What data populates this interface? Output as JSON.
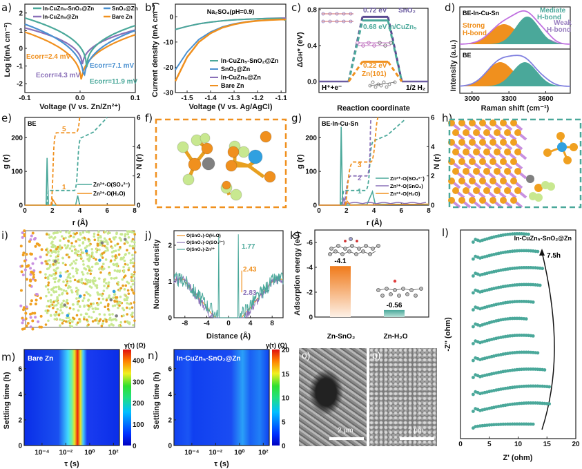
{
  "colors": {
    "teal": "#4aa89a",
    "blue": "#4a90d0",
    "purple": "#8a70b8",
    "orange": "#f0901e",
    "lime": "#c8e890",
    "zn": "#808080",
    "s": "#30a0e0",
    "sn": "#c890e0"
  },
  "panels": {
    "a": {
      "label": "a)",
      "xlabel": "Voltage (V vs. Zn/Zn²⁺)",
      "ylabel": "Log i(mA cm⁻²)",
      "xticks": [
        "-0.1",
        "0.0",
        "0.1"
      ],
      "yticks": [
        "2",
        "1",
        "0",
        "-1",
        "-2"
      ],
      "legend": [
        "In-CuZn₅-SnO₂@Zn",
        "SnO₂@Zn",
        "In-CuZn₅@Zn",
        "Bare Zn"
      ],
      "annotations": [
        "Eₕₒᵣᵣ=2.4 mV",
        "Eₕₒᵣᵣ=4.3 mV",
        "Eₕₒᵣᵣ=7.1 mV",
        "Eₕₒᵣᵣ=11.9 mV"
      ],
      "ecorr": [
        "Ecorr=2.4 mV",
        "Ecorr=4.3 mV",
        "Ecorr=7.1 mV",
        "Ecorr=11.9 mV"
      ]
    },
    "b": {
      "label": "b)",
      "title": "Na₂SO₄(pH=0.9)",
      "xlabel": "Voltage (V vs. Ag/AgCl)",
      "ylabel": "Current density (mA cm⁻²)",
      "xticks": [
        "-1.5",
        "-1.4",
        "-1.3",
        "-1.2",
        "-1.1"
      ],
      "yticks": [
        "0",
        "-10",
        "-20",
        "-30"
      ],
      "legend": [
        "In-CuZn₅-SnO₂@Zn",
        "SnO₂@Zn",
        "In-CuZn₅@Zn",
        "Bare Zn"
      ]
    },
    "c": {
      "label": "c)",
      "xlabel": "Reaction coordinate",
      "ylabel": "ΔGʜ* (eV)",
      "yticks": [
        "0.8",
        "0.4",
        "0.0"
      ],
      "start": "H⁺+e⁻",
      "end": "1/2 H₂",
      "levels": [
        {
          "value": "0.72 eV",
          "name": "SnO₂"
        },
        {
          "value": "0.68 eV",
          "name": "In/CuZn₅"
        },
        {
          "value": "0.22 eV",
          "name": "Zn(101)"
        }
      ]
    },
    "d": {
      "label": "d)",
      "xlabel": "Raman shift (cm⁻¹)",
      "ylabel": "Intensity (a.u.)",
      "xticks": [
        "3000",
        "3300",
        "3600"
      ],
      "top": "BE-In-Cu-Sn",
      "bottom": "BE",
      "strong": "Strong H-bond",
      "mediate": "Mediate H-bond",
      "weak": "Weak H-bond"
    },
    "e": {
      "label": "e)",
      "tag": "BE",
      "xlabel": "r (Å)",
      "ylabel": "g (r)",
      "y2label": "N (r)",
      "xticks": [
        "0",
        "2",
        "4",
        "6",
        "8"
      ],
      "yticks": [
        "200",
        "100",
        "0"
      ],
      "y2ticks": [
        "6",
        "4",
        "2",
        "0"
      ],
      "n1": "1",
      "n2": "5",
      "legend": [
        "Zn²⁺-O(SO₄²⁻)",
        "Zn²⁺-O(H₂O)"
      ]
    },
    "f": {
      "label": "f)"
    },
    "g": {
      "label": "g)",
      "tag": "BE-In-Cu-Sn",
      "xlabel": "r (Å)",
      "ylabel": "g (r)",
      "y2label": "N (r)",
      "xticks": [
        "0",
        "2",
        "4",
        "6",
        "8"
      ],
      "yticks": [
        "200",
        "100",
        "0"
      ],
      "y2ticks": [
        "6",
        "4",
        "2",
        "0"
      ],
      "n1": "1",
      "n2": "2",
      "n3": "3",
      "legend": [
        "Zn²⁺-O(SO₄²⁻)",
        "Zn²⁺-O(SnO₂)",
        "Zn²⁺-O(H₂O)"
      ]
    },
    "h": {
      "label": "h)"
    },
    "i": {
      "label": "i)"
    },
    "j": {
      "label": "j)",
      "xlabel": "Distance (Å)",
      "ylabel": "Normalized density",
      "xticks": [
        "-8",
        "-4",
        "0",
        "4",
        "8"
      ],
      "yticks": [
        "2",
        "1",
        "0"
      ],
      "legend": [
        "O(SnO₂)-O(H₂O)",
        "O(SnO₂)-O(SO₄²⁻)",
        "O(SnO₂)-Zn²⁺"
      ],
      "peaks": [
        "1.77",
        "2.43",
        "2.83"
      ]
    },
    "k": {
      "label": "k)",
      "ylabel": "Adsorption energy (eV)",
      "yticks": [
        "-6",
        "-4",
        "-2",
        "0"
      ],
      "categories": [
        "Zn-SnO₂",
        "Zn-H₂O"
      ],
      "values": [
        "-4.1",
        "-0.56"
      ]
    },
    "l": {
      "label": "l)",
      "tag": "In-CuZn₅-SnO₂@Zn",
      "xlabel": "Z' (ohm)",
      "ylabel": "-Z'' (ohm)",
      "xticks": [
        "0",
        "5",
        "10",
        "15",
        "20"
      ],
      "arrow": "7.5h"
    },
    "m": {
      "label": "m)",
      "tag": "Bare Zn",
      "xlabel": "τ (s)",
      "ylabel": "Settling time (h)",
      "xticks": [
        "10⁻⁴",
        "10⁻²",
        "10⁰",
        "10²"
      ],
      "yticks": [
        "6",
        "4",
        "2",
        "0"
      ],
      "cbar_title": "γ(τ) (Ω)",
      "cbar_ticks": [
        "400",
        "300",
        "200",
        "100",
        "0"
      ]
    },
    "n": {
      "label": "n)",
      "tag": "In-CuZn₅-SnO₂@Zn",
      "xlabel": "τ (s)",
      "ylabel": "Settling time (h)",
      "xticks": [
        "10⁻⁴",
        "10⁻²",
        "10⁰",
        "10²"
      ],
      "yticks": [
        "6",
        "4",
        "2",
        "0"
      ],
      "cbar_title": "γ(τ) (Ω)",
      "cbar_ticks": [
        "20",
        "15",
        "10",
        "5",
        "0"
      ]
    },
    "o": {
      "label": "o)",
      "scale": "2 μm"
    },
    "p": {
      "label": "p)",
      "scale": "2 μm"
    }
  },
  "chart_data": [
    {
      "panel": "a",
      "type": "line",
      "title": "",
      "xlabel": "Voltage (V vs. Zn/Zn2+)",
      "ylabel": "Log i (mA cm-2)",
      "xlim": [
        -0.1,
        0.1
      ],
      "ylim": [
        -2.5,
        2.5
      ],
      "series": [
        {
          "name": "In-CuZn5-SnO2@Zn",
          "ecorr_V": 0.0119,
          "min": -1.3,
          "left": 1.7,
          "right": 1.5
        },
        {
          "name": "SnO2@Zn",
          "ecorr_V": 0.0071,
          "min": -2.1,
          "left": 1.4,
          "right": 1.2
        },
        {
          "name": "In-CuZn5@Zn",
          "ecorr_V": 0.0043,
          "min": -1.2,
          "left": 1.2,
          "right": 1.15
        },
        {
          "name": "Bare Zn",
          "ecorr_V": 0.0024,
          "min": -2.2,
          "left": 1.0,
          "right": 0.9
        }
      ]
    },
    {
      "panel": "b",
      "type": "line",
      "xlabel": "Voltage (V vs. Ag/AgCl)",
      "ylabel": "Current density (mA cm-2)",
      "xlim": [
        -1.55,
        -1.08
      ],
      "ylim": [
        -30,
        5
      ],
      "x": [
        -1.55,
        -1.5,
        -1.45,
        -1.4,
        -1.35,
        -1.3,
        -1.25,
        -1.2,
        -1.15,
        -1.1,
        -1.08
      ],
      "series": [
        {
          "name": "In-CuZn5-SnO2@Zn",
          "values": [
            -5,
            -3.8,
            -2.8,
            -2.1,
            -1.6,
            -1.2,
            -1,
            -0.8,
            -0.7,
            -0.6,
            -1.5
          ]
        },
        {
          "name": "SnO2@Zn",
          "values": [
            -21,
            -14,
            -9,
            -6,
            -4,
            -2.8,
            -2,
            -1.5,
            -1.2,
            -1,
            -1
          ]
        },
        {
          "name": "In-CuZn5@Zn",
          "values": [
            -5,
            -3.8,
            -2.8,
            -2.1,
            -1.6,
            -1.2,
            -1,
            -0.8,
            -0.6,
            -0.5,
            -0.5
          ]
        },
        {
          "name": "Bare Zn",
          "values": [
            -25.5,
            -16,
            -10,
            -6.5,
            -4.3,
            -3,
            -2.1,
            -1.6,
            -1.3,
            -1.1,
            -1.1
          ]
        }
      ]
    },
    {
      "panel": "c",
      "type": "line",
      "ylabel": "dG_H* (eV)",
      "ylim": [
        0,
        0.8
      ],
      "series": [
        {
          "name": "SnO2",
          "value": 0.72
        },
        {
          "name": "In/CuZn5",
          "value": 0.68
        },
        {
          "name": "Zn(101)",
          "value": 0.22
        }
      ]
    },
    {
      "panel": "k",
      "type": "bar",
      "categories": [
        "Zn-SnO2",
        "Zn-H2O"
      ],
      "values": [
        -4.1,
        -0.56
      ],
      "ylabel": "Adsorption energy (eV)",
      "ylim": [
        0,
        -7
      ]
    },
    {
      "panel": "m",
      "type": "heatmap",
      "xlabel": "tau (s)",
      "ylabel": "Settling time (h)",
      "colorbar": [
        0,
        450
      ]
    },
    {
      "panel": "n",
      "type": "heatmap",
      "xlabel": "tau (s)",
      "ylabel": "Settling time (h)",
      "colorbar": [
        0,
        20
      ]
    },
    {
      "panel": "l",
      "type": "scatter",
      "xlabel": "Z' (ohm)",
      "ylabel": "-Z'' (ohm)",
      "xlim": [
        0,
        20
      ],
      "curves": 12,
      "time_span": "7.5h"
    }
  ]
}
